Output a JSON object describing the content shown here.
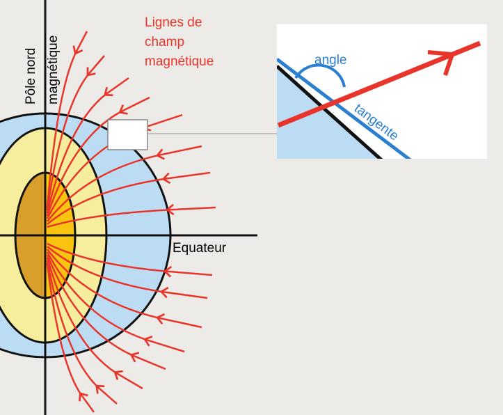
{
  "labels": {
    "pole": "Pôle nord",
    "magnetic": "magnétique",
    "field_lines": [
      "Lignes de",
      "champ",
      "magnétique"
    ],
    "angle": "angle",
    "tangent": "tangente",
    "equator": "Equateur"
  }
}
